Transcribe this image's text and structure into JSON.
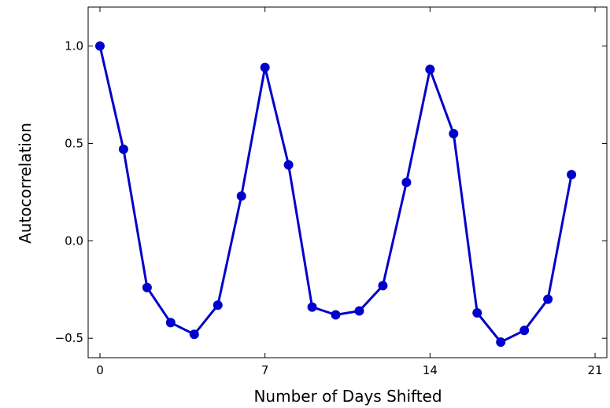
{
  "chart_data": {
    "type": "line",
    "title": "",
    "xlabel": "Number of Days Shifted",
    "ylabel": "Autocorrelation",
    "xlim": [
      -0.5,
      21.5
    ],
    "ylim": [
      -0.6,
      1.2
    ],
    "xticks": [
      0,
      7,
      14,
      21
    ],
    "xtick_labels": [
      "0",
      "7",
      "14",
      "21"
    ],
    "yticks": [
      -0.5,
      0.0,
      0.5,
      1.0
    ],
    "ytick_labels": [
      "−0.5",
      "0.0",
      "0.5",
      "1.0"
    ],
    "grid": false,
    "legend": null,
    "series": [
      {
        "color": "#0000cc",
        "marker": "circle",
        "x": [
          0,
          1,
          2,
          3,
          4,
          5,
          6,
          7,
          8,
          9,
          10,
          11,
          12,
          13,
          14,
          15,
          16,
          17,
          18,
          19,
          20
        ],
        "values": [
          1.0,
          0.47,
          -0.24,
          -0.42,
          -0.48,
          -0.33,
          0.23,
          0.89,
          0.39,
          -0.34,
          -0.38,
          -0.36,
          -0.23,
          0.3,
          0.88,
          0.55,
          -0.37,
          -0.52,
          -0.46,
          -0.3,
          0.34
        ]
      }
    ]
  }
}
